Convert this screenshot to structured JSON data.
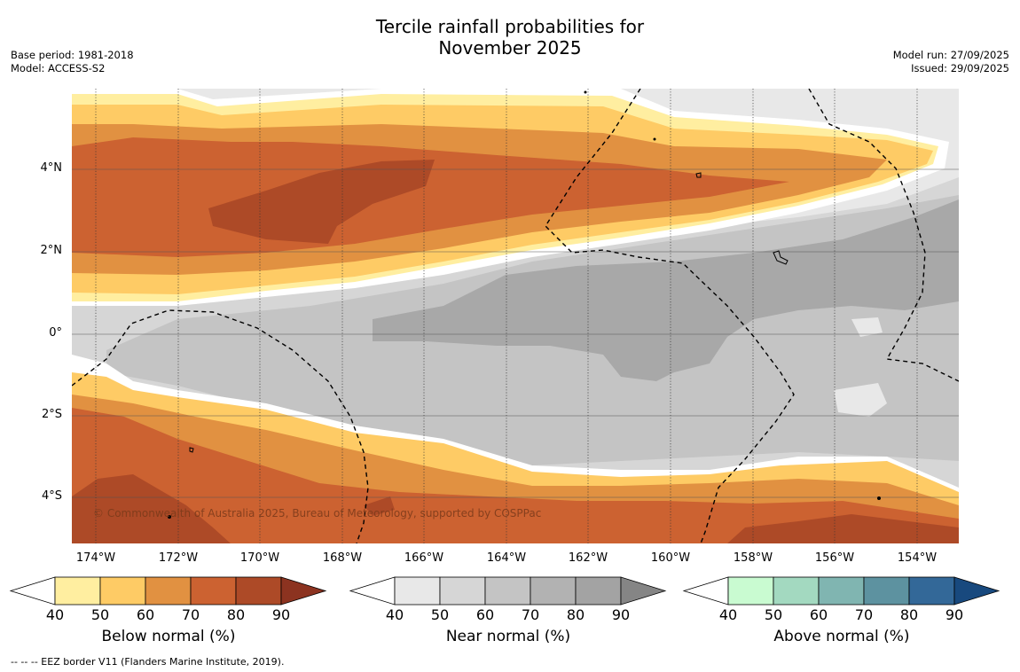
{
  "title_line1": "Tercile rainfall probabilities for",
  "title_line2": "November 2025",
  "base_period": "Base period: 1981-2018",
  "model": "Model: ACCESS-S2",
  "model_run": "Model run: 27/09/2025",
  "issued": "Issued: 29/09/2025",
  "copyright": "© Commonwealth of Australia 2025, Bureau of Meteorology, supported by COSPPac",
  "footnote": "--  --  -- EEZ border V11 (Flanders Marine Institute, 2019).",
  "lat_labels": [
    "4°N",
    "2°N",
    "0°",
    "2°S",
    "4°S"
  ],
  "lon_labels": [
    "174°W",
    "172°W",
    "170°W",
    "168°W",
    "166°W",
    "164°W",
    "162°W",
    "160°W",
    "158°W",
    "156°W",
    "154°W"
  ],
  "colorbars": [
    {
      "title": "Below normal (%)",
      "ticks": [
        "40",
        "50",
        "60",
        "70",
        "80",
        "90"
      ],
      "colors": [
        "#ffffff",
        "#ffeea0",
        "#fecb65",
        "#e19141",
        "#cc6231",
        "#ad4a27",
        "#8c3320"
      ]
    },
    {
      "title": "Near normal (%)",
      "ticks": [
        "40",
        "50",
        "60",
        "70",
        "80",
        "90"
      ],
      "colors": [
        "#ffffff",
        "#e8e8e8",
        "#d6d6d6",
        "#c4c4c4",
        "#b2b2b2",
        "#a3a3a3",
        "#858585"
      ]
    },
    {
      "title": "Above normal (%)",
      "ticks": [
        "40",
        "50",
        "60",
        "70",
        "80",
        "90"
      ],
      "colors": [
        "#ffffff",
        "#c9fbd1",
        "#a3d9c0",
        "#80b5b1",
        "#5d92a0",
        "#336898",
        "#18497e"
      ]
    }
  ],
  "map_colors": {
    "bn_50": "#ffeea0",
    "bn_60": "#fecb65",
    "bn_70": "#e19141",
    "bn_80": "#cc6231",
    "bn_90": "#ad4a27",
    "nn_40": "#e8e8e8",
    "nn_50": "#d6d6d6",
    "nn_60": "#c4c4c4",
    "nn_70": "#a8a8a8"
  }
}
